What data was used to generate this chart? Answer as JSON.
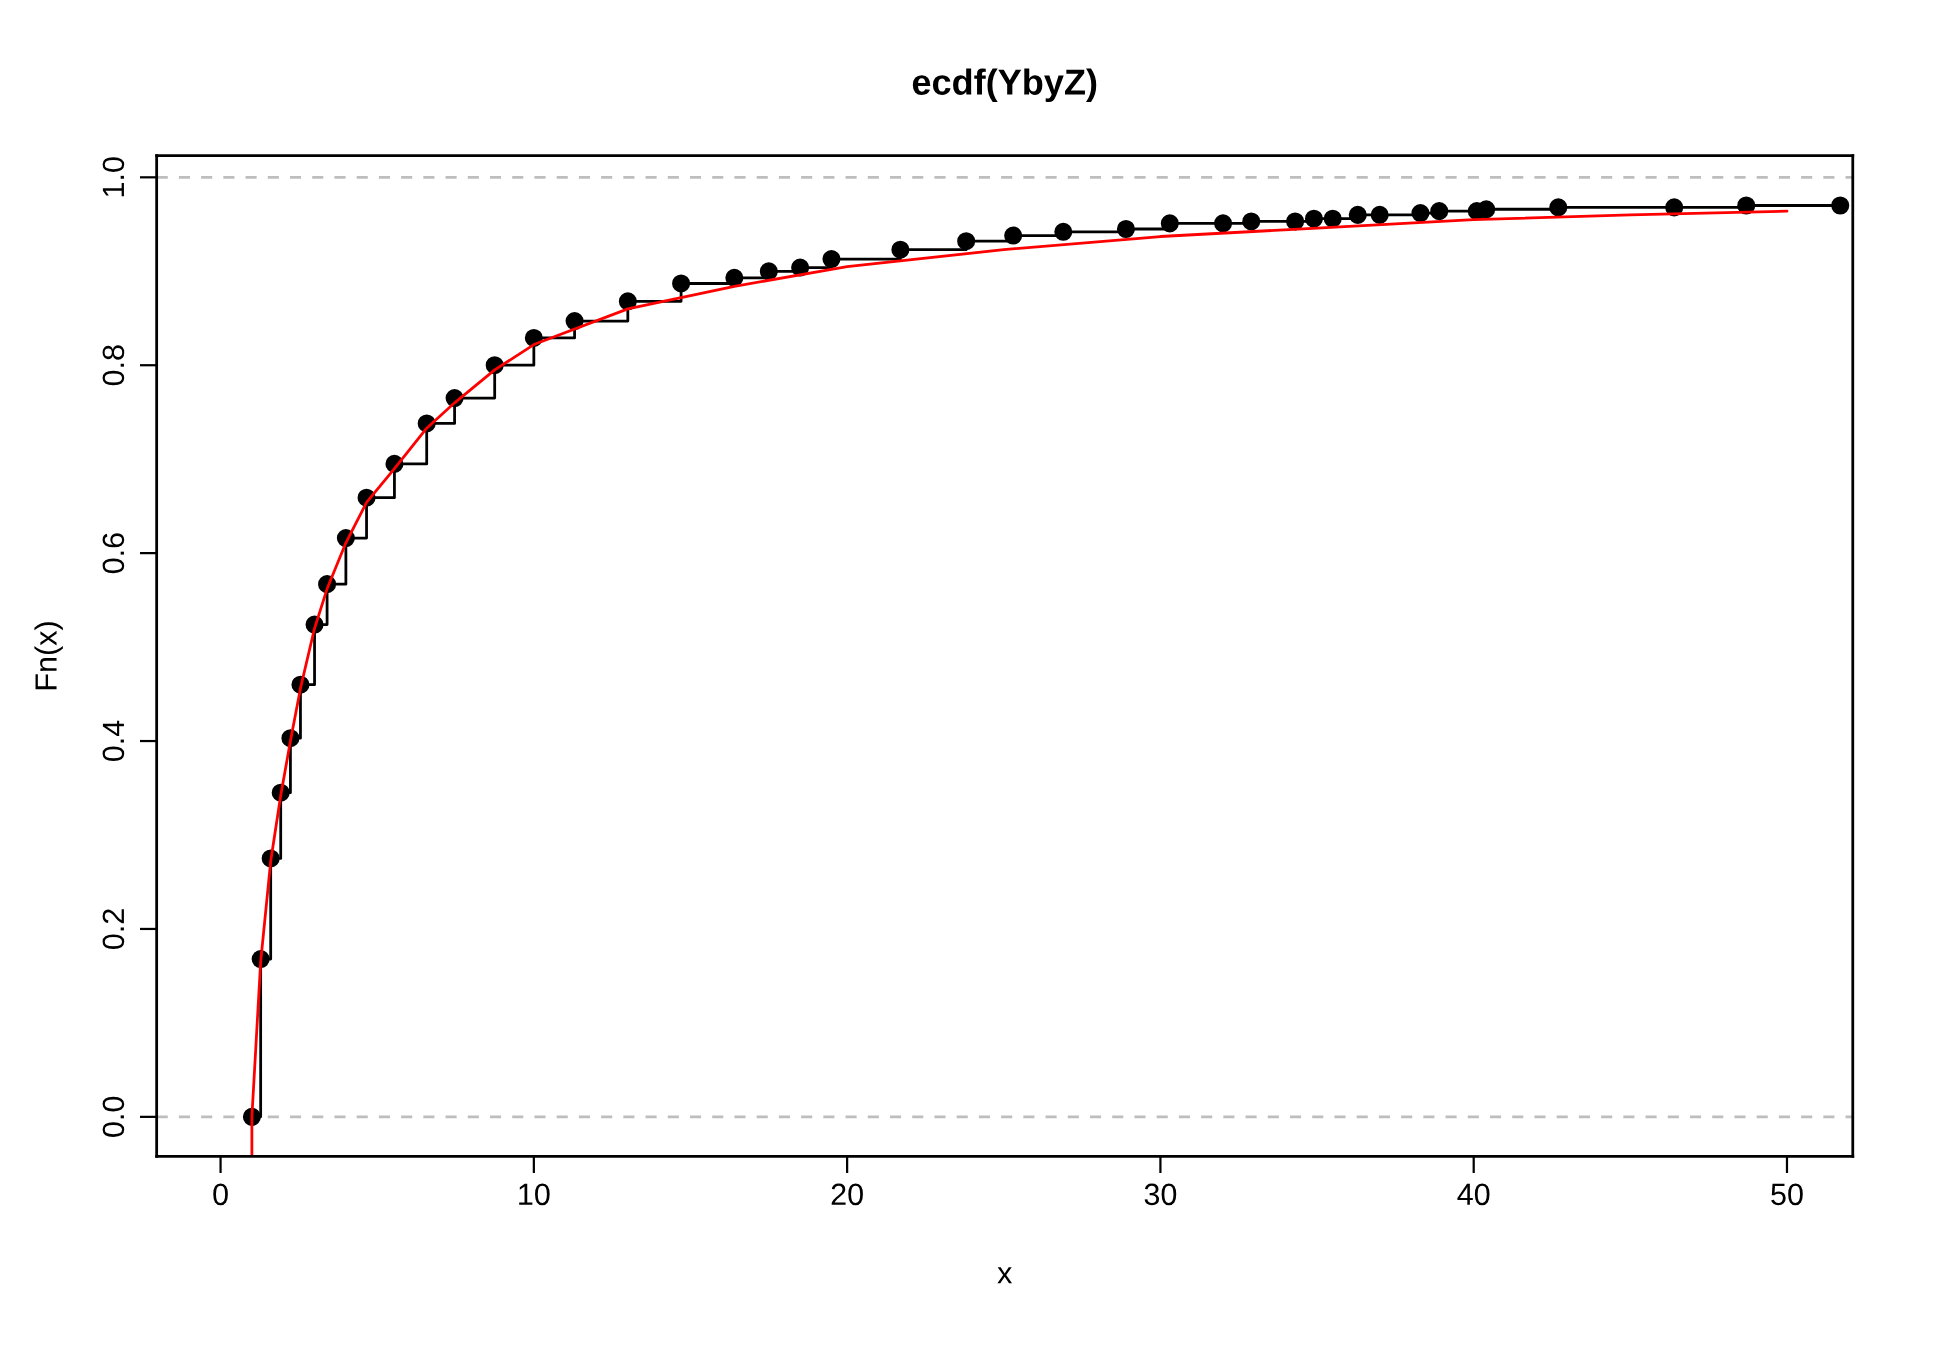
{
  "chart_data": {
    "type": "step",
    "title": "ecdf(YbyZ)",
    "xlabel": "x",
    "ylabel": "Fn(x)",
    "xlim": [
      -2.04,
      52.1
    ],
    "ylim": [
      -0.042,
      1.023
    ],
    "xticks": [
      0,
      10,
      20,
      30,
      40,
      50
    ],
    "yticks": [
      {
        "value": 0,
        "label": "0.0"
      },
      {
        "value": 0.2,
        "label": "0.2"
      },
      {
        "value": 0.4,
        "label": "0.4"
      },
      {
        "value": 0.6,
        "label": "0.6"
      },
      {
        "value": 0.8,
        "label": "0.8"
      },
      {
        "value": 1,
        "label": "1.0"
      }
    ],
    "grid": false,
    "legend": false,
    "ref_lines": [
      {
        "axis": "y",
        "value": 0,
        "color": "#bebebe",
        "line_style": "dashed"
      },
      {
        "axis": "y",
        "value": 1,
        "color": "#bebebe",
        "line_style": "dashed"
      }
    ],
    "series": [
      {
        "color": "#000000",
        "marker": "circle",
        "line_style": "solid",
        "x": [
          1.0,
          1.28,
          1.6,
          1.92,
          2.23,
          2.55,
          3.0,
          3.4,
          4.0,
          4.66,
          5.55,
          6.58,
          7.47,
          8.75,
          10.0,
          11.3,
          13.0,
          14.7,
          16.4,
          17.5,
          18.5,
          19.5,
          21.7,
          23.8,
          25.3,
          26.9,
          28.9,
          30.3,
          32.0,
          32.9,
          34.3,
          34.9,
          35.5,
          36.3,
          37.0,
          38.3,
          38.9,
          40.1,
          40.4,
          42.7,
          46.4,
          48.7,
          51.7
        ],
        "values": [
          0.0,
          0.168,
          0.275,
          0.345,
          0.403,
          0.46,
          0.524,
          0.567,
          0.616,
          0.659,
          0.695,
          0.738,
          0.765,
          0.8,
          0.829,
          0.847,
          0.868,
          0.887,
          0.893,
          0.9,
          0.904,
          0.913,
          0.923,
          0.932,
          0.938,
          0.942,
          0.945,
          0.951,
          0.951,
          0.953,
          0.953,
          0.956,
          0.956,
          0.96,
          0.96,
          0.962,
          0.964,
          0.964,
          0.966,
          0.968,
          0.968,
          0.97,
          0.97
        ]
      },
      {
        "type": "line",
        "color": "#ff0000",
        "marker": "none",
        "line_style": "solid",
        "x": [
          1.0,
          1.0,
          1.28,
          1.6,
          1.92,
          2.23,
          2.55,
          3.0,
          3.4,
          4.0,
          4.66,
          5.55,
          6.58,
          7.47,
          8.75,
          10.0,
          13.0,
          16.4,
          20.0,
          25.0,
          30.0,
          35.0,
          40.0,
          45.0,
          50.0
        ],
        "values": [
          -0.04,
          0.0,
          0.165,
          0.272,
          0.342,
          0.4,
          0.456,
          0.52,
          0.562,
          0.611,
          0.654,
          0.69,
          0.733,
          0.76,
          0.795,
          0.822,
          0.86,
          0.884,
          0.905,
          0.923,
          0.937,
          0.946,
          0.955,
          0.96,
          0.964
        ]
      }
    ]
  }
}
